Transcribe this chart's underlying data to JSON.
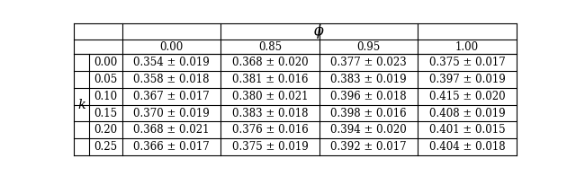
{
  "phi_header": "$\\phi$",
  "k_label": "$k$",
  "col_headers": [
    "0.00",
    "0.85",
    "0.95",
    "1.00"
  ],
  "row_headers": [
    "0.00",
    "0.05",
    "0.10",
    "0.15",
    "0.20",
    "0.25"
  ],
  "cells": [
    [
      "$0.354 \\pm 0.019$",
      "$0.368 \\pm 0.020$",
      "$0.377 \\pm 0.023$",
      "$0.375 \\pm 0.017$"
    ],
    [
      "$0.358 \\pm 0.018$",
      "$0.381 \\pm 0.016$",
      "$0.383 \\pm 0.019$",
      "$0.397 \\pm 0.019$"
    ],
    [
      "$0.367 \\pm 0.017$",
      "$0.380 \\pm 0.021$",
      "$0.396 \\pm 0.018$",
      "$0.415 \\pm 0.020$"
    ],
    [
      "$0.370 \\pm 0.019$",
      "$0.383 \\pm 0.018$",
      "$0.398 \\pm 0.016$",
      "$0.408 \\pm 0.019$"
    ],
    [
      "$0.368 \\pm 0.021$",
      "$0.376 \\pm 0.016$",
      "$0.394 \\pm 0.020$",
      "$0.401 \\pm 0.015$"
    ],
    [
      "$0.366 \\pm 0.017$",
      "$0.375 \\pm 0.019$",
      "$0.392 \\pm 0.017$",
      "$0.404 \\pm 0.018$"
    ]
  ],
  "bg_color": "#ffffff",
  "line_color": "#000000",
  "font_size": 8.5,
  "header_font_size": 9.5,
  "fig_width": 6.4,
  "fig_height": 1.96,
  "dpi": 100
}
